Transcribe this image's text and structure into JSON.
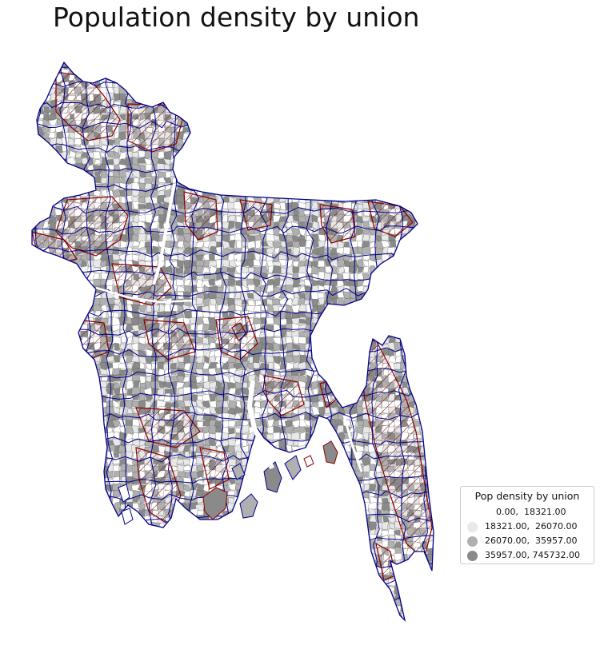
{
  "map": {
    "title": "Population density by union",
    "colors": {
      "boundary_blue": "#00008b",
      "boundary_red": "#8b0000",
      "hatch": "#8b0000",
      "thin_lines": "#555555"
    },
    "legend": {
      "title": "Pop density by union",
      "placement": "lower-right",
      "items": [
        {
          "label": "    0.00,  18321.00",
          "color": "#ffffff"
        },
        {
          "label": "18321.00,  26070.00",
          "color": "#e8e8e8"
        },
        {
          "label": "26070.00,  35957.00",
          "color": "#b0b0b0"
        },
        {
          "label": "35957.00, 745732.00",
          "color": "#8a8a8a"
        }
      ]
    }
  }
}
